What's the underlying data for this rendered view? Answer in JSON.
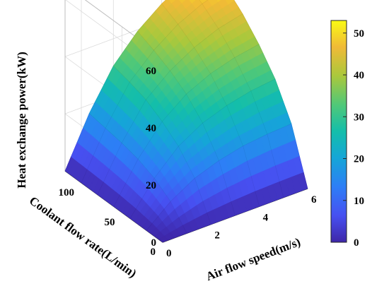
{
  "chart_data": {
    "type": "surface",
    "title": "",
    "xlabel": "Air flow speed(m/s)",
    "ylabel": "Coolant flow rate(L/min)",
    "zlabel": "Heat exchange power(kW)",
    "xlim": [
      0,
      6
    ],
    "ylim": [
      0,
      120
    ],
    "zlim": [
      0,
      65
    ],
    "x_ticks": [
      "0",
      "2",
      "4",
      "6"
    ],
    "y_ticks": [
      "0",
      "50",
      "100"
    ],
    "z_ticks": [
      "0",
      "20",
      "40",
      "60"
    ],
    "colorbar": {
      "range": [
        0,
        53
      ],
      "ticks": [
        "0",
        "10",
        "20",
        "30",
        "40",
        "50"
      ]
    },
    "colormap": "parula",
    "grid": true,
    "x": [
      0,
      1,
      2,
      3,
      4,
      5,
      6
    ],
    "y": [
      0,
      20,
      40,
      60,
      80,
      100,
      120
    ],
    "z": [
      [
        0,
        0,
        0,
        0,
        0,
        0,
        0
      ],
      [
        0,
        7,
        12,
        15,
        17,
        18,
        18.5
      ],
      [
        0,
        11,
        19,
        24,
        27,
        29,
        30
      ],
      [
        0,
        13.5,
        23.5,
        30,
        34,
        36.5,
        38
      ],
      [
        0,
        15,
        27,
        34,
        39,
        42.5,
        44.5
      ],
      [
        0,
        16,
        29,
        37,
        43,
        47,
        49.5
      ],
      [
        0,
        17,
        30.5,
        39.5,
        46,
        50.5,
        53
      ]
    ]
  }
}
